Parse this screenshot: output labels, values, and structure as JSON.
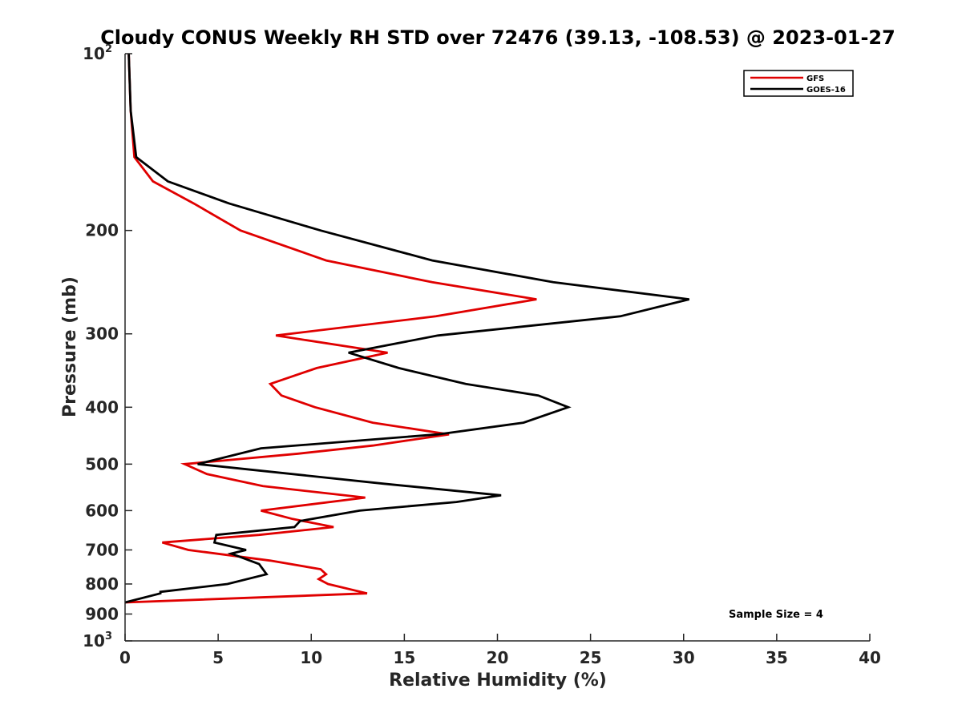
{
  "chart_data": {
    "type": "line",
    "title": "Cloudy CONUS Weekly RH STD over 72476 (39.13, -108.53) @ 2023-01-27",
    "xlabel": "Relative Humidity (%)",
    "ylabel": "Pressure (mb)",
    "xlim": [
      0,
      40
    ],
    "ylim": [
      100,
      1000
    ],
    "y_scale": "log",
    "y_reversed": true,
    "grid": false,
    "legend_position": "top-right",
    "x_ticks": [
      0,
      5,
      10,
      15,
      20,
      25,
      30,
      35,
      40
    ],
    "x_tick_labels": [
      "0",
      "5",
      "10",
      "15",
      "20",
      "25",
      "30",
      "35",
      "40"
    ],
    "y_ticks": [
      {
        "value": 100,
        "base": "10",
        "exp": "2"
      },
      {
        "value": 200,
        "base": "200",
        "exp": ""
      },
      {
        "value": 300,
        "base": "300",
        "exp": ""
      },
      {
        "value": 400,
        "base": "400",
        "exp": ""
      },
      {
        "value": 500,
        "base": "500",
        "exp": ""
      },
      {
        "value": 600,
        "base": "600",
        "exp": ""
      },
      {
        "value": 700,
        "base": "700",
        "exp": ""
      },
      {
        "value": 800,
        "base": "800",
        "exp": ""
      },
      {
        "value": 900,
        "base": "900",
        "exp": ""
      },
      {
        "value": 1000,
        "base": "10",
        "exp": "3"
      }
    ],
    "annotation": "Sample Size = 4",
    "series": [
      {
        "name": "GFS",
        "color": "#e00000",
        "points": [
          [
            0.2,
            100
          ],
          [
            0.3,
            125
          ],
          [
            0.5,
            150
          ],
          [
            1.5,
            165
          ],
          [
            3.7,
            180
          ],
          [
            6.2,
            200
          ],
          [
            10.8,
            225
          ],
          [
            16.5,
            245
          ],
          [
            22.1,
            262
          ],
          [
            16.7,
            280
          ],
          [
            8.1,
            302
          ],
          [
            14.1,
            323
          ],
          [
            10.3,
            343
          ],
          [
            7.8,
            365
          ],
          [
            8.4,
            382
          ],
          [
            10.2,
            400
          ],
          [
            13.3,
            425
          ],
          [
            17.4,
            445
          ],
          [
            13.3,
            465
          ],
          [
            9.3,
            480
          ],
          [
            3.2,
            500
          ],
          [
            4.4,
            520
          ],
          [
            7.4,
            545
          ],
          [
            12.9,
            570
          ],
          [
            7.3,
            600
          ],
          [
            9.0,
            620
          ],
          [
            11.2,
            640
          ],
          [
            7.2,
            660
          ],
          [
            2.0,
            680
          ],
          [
            3.4,
            700
          ],
          [
            7.8,
            730
          ],
          [
            10.5,
            755
          ],
          [
            10.8,
            770
          ],
          [
            10.4,
            785
          ],
          [
            10.9,
            800
          ],
          [
            13.0,
            830
          ],
          [
            0.0,
            860
          ]
        ]
      },
      {
        "name": "GOES-16",
        "color": "#000000",
        "points": [
          [
            0.2,
            100
          ],
          [
            0.3,
            125
          ],
          [
            0.6,
            150
          ],
          [
            2.3,
            165
          ],
          [
            5.6,
            180
          ],
          [
            10.5,
            200
          ],
          [
            16.5,
            225
          ],
          [
            23.0,
            245
          ],
          [
            30.3,
            262
          ],
          [
            26.6,
            280
          ],
          [
            16.8,
            302
          ],
          [
            12.0,
            323
          ],
          [
            14.7,
            343
          ],
          [
            18.3,
            365
          ],
          [
            22.2,
            382
          ],
          [
            23.8,
            400
          ],
          [
            21.4,
            425
          ],
          [
            16.8,
            445
          ],
          [
            7.3,
            470
          ],
          [
            3.9,
            500
          ],
          [
            13.9,
            540
          ],
          [
            20.2,
            565
          ],
          [
            17.8,
            580
          ],
          [
            12.6,
            600
          ],
          [
            9.4,
            625
          ],
          [
            9.1,
            640
          ],
          [
            4.9,
            660
          ],
          [
            4.8,
            680
          ],
          [
            6.5,
            700
          ],
          [
            5.7,
            710
          ],
          [
            7.2,
            740
          ],
          [
            7.6,
            770
          ],
          [
            5.5,
            800
          ],
          [
            1.9,
            825
          ],
          [
            1.9,
            830
          ],
          [
            0.0,
            860
          ]
        ]
      }
    ]
  }
}
